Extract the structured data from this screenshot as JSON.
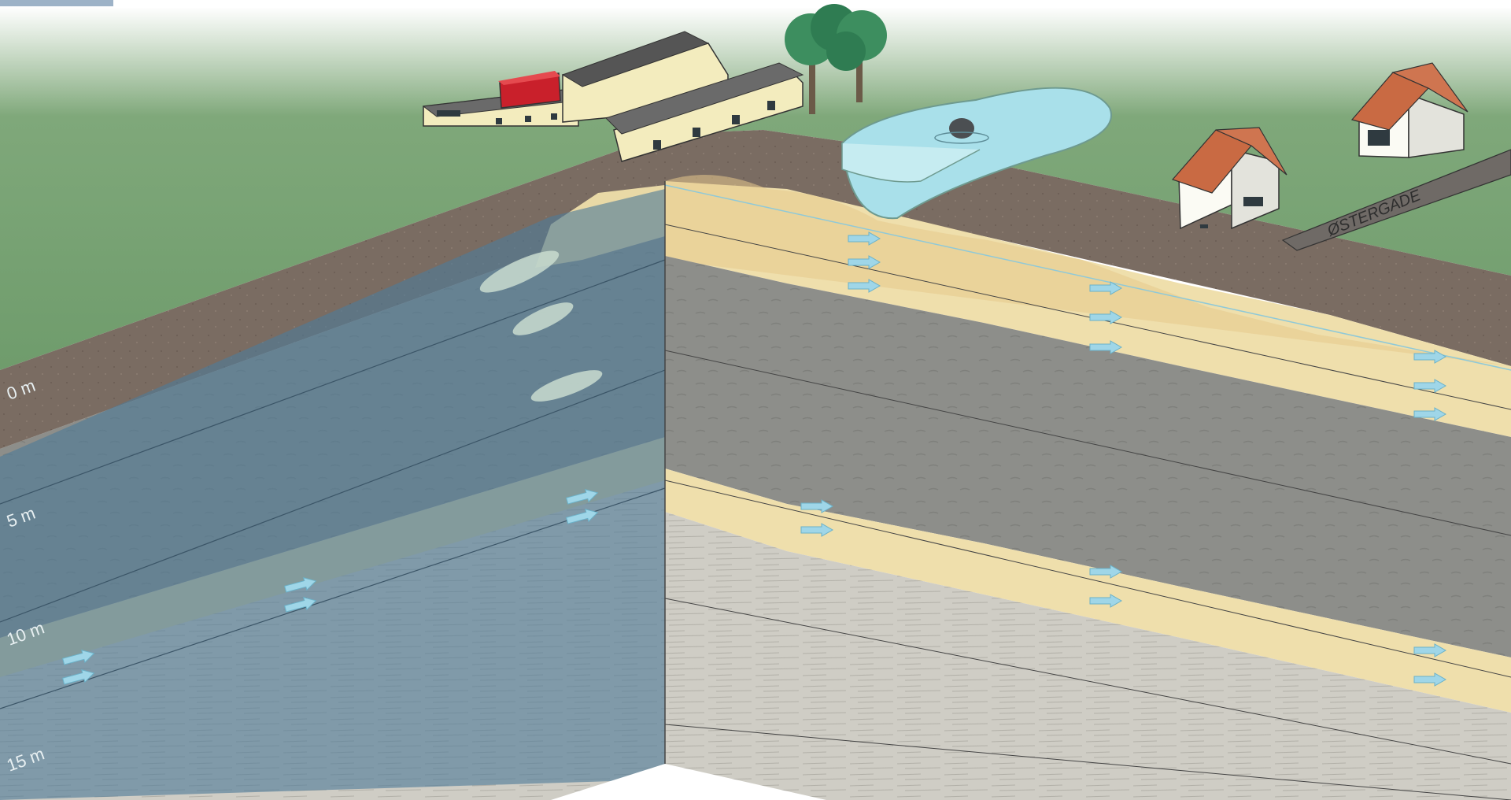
{
  "depth_scale": {
    "labels": [
      "0 m",
      "5 m",
      "10 m",
      "15 m"
    ]
  },
  "road": {
    "name": "ØSTERGADE"
  },
  "colors": {
    "grass": "#7fa679",
    "topsoil": "#7a6c62",
    "sand": "#efdfac",
    "clay": "#8e8f8b",
    "chalk": "#cfcdc5",
    "plume": "#4f7b98",
    "groundwater": "#a9e0ea",
    "flow_arrow": "#9fd6e8",
    "farm_wall": "#f3ecbe",
    "farm_roof": "#696969",
    "shed_red": "#c9202b",
    "house_roof": "#c96a43"
  },
  "icons": {
    "flow_arrow": "flow-arrow-icon",
    "tree": "tree-icon",
    "house": "house-icon",
    "farm": "farm-building-icon",
    "drain": "drain-outlet-icon"
  }
}
